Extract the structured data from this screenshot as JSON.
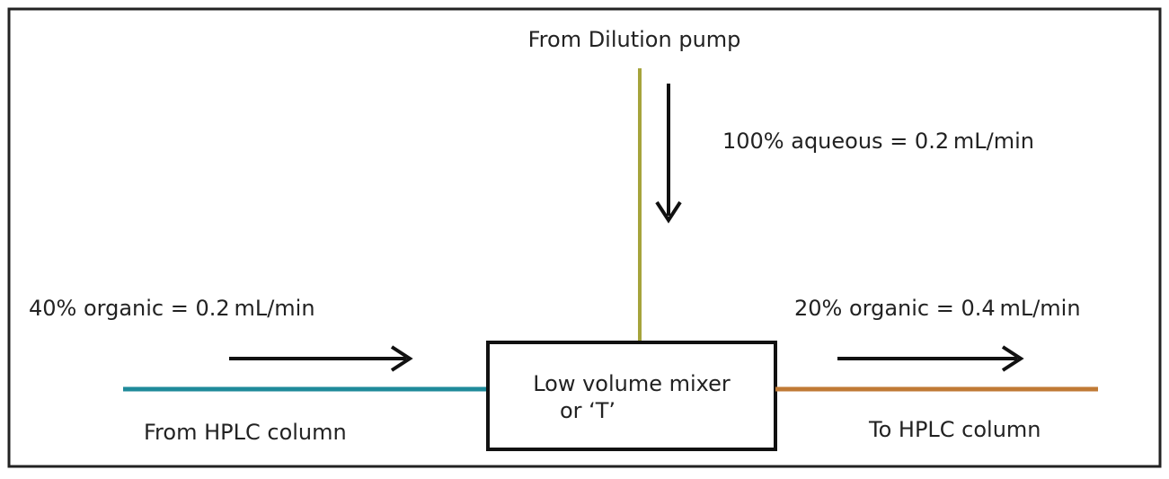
{
  "top_label": "From Dilution pump",
  "top_flow": "100% aqueous  = 0.2 mL/min",
  "left_flow": "40% organic = 0.2 mL/min",
  "left_label": "From HPLC column",
  "right_flow": "20% organic = 0.4 mL/min",
  "right_label": "To HPLC column",
  "mixer": {
    "line1": "Low volume mixer",
    "line2": "or ‘T’"
  }
}
